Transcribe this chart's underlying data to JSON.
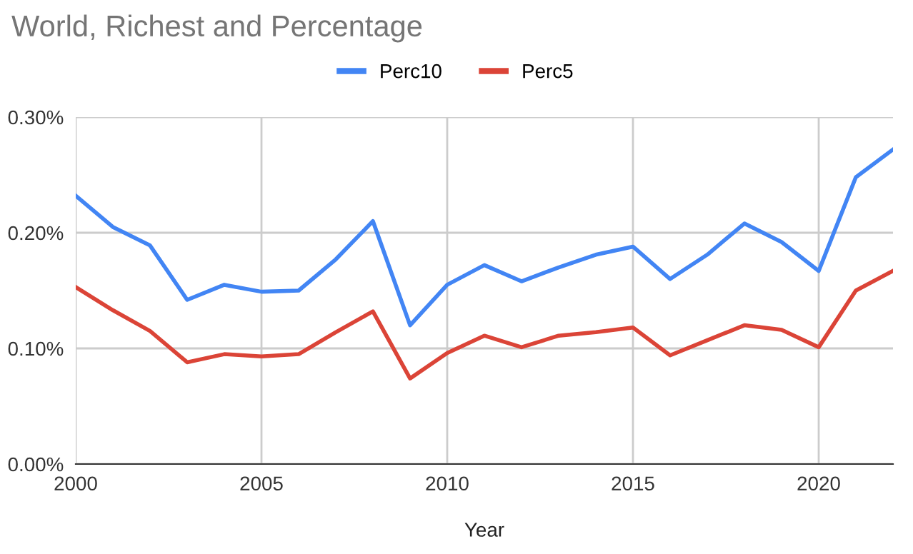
{
  "chart_data": {
    "type": "line",
    "title": "World, Richest and Percentage",
    "xlabel": "Year",
    "x": [
      2000,
      2001,
      2002,
      2003,
      2004,
      2005,
      2006,
      2007,
      2008,
      2009,
      2010,
      2011,
      2012,
      2013,
      2014,
      2015,
      2016,
      2017,
      2018,
      2019,
      2020,
      2021,
      2022
    ],
    "series": [
      {
        "name": "Perc10",
        "color": "#4285f4",
        "values": [
          0.232,
          0.205,
          0.189,
          0.142,
          0.155,
          0.149,
          0.15,
          0.177,
          0.21,
          0.12,
          0.155,
          0.172,
          0.158,
          0.17,
          0.181,
          0.188,
          0.16,
          0.181,
          0.208,
          0.192,
          0.167,
          0.248,
          0.272
        ]
      },
      {
        "name": "Perc5",
        "color": "#db4437",
        "values": [
          0.153,
          0.133,
          0.115,
          0.088,
          0.095,
          0.093,
          0.095,
          0.114,
          0.132,
          0.074,
          0.096,
          0.111,
          0.101,
          0.111,
          0.114,
          0.118,
          0.094,
          0.107,
          0.12,
          0.116,
          0.101,
          0.15,
          0.167
        ]
      }
    ],
    "xlim": [
      2000,
      2022
    ],
    "xticks": [
      2000,
      2005,
      2010,
      2015,
      2020
    ],
    "ylim": [
      0,
      0.3
    ],
    "yticks": [
      {
        "value": 0,
        "label": "0.00%"
      },
      {
        "value": 0.1,
        "label": "0.10%"
      },
      {
        "value": 0.2,
        "label": "0.20%"
      },
      {
        "value": 0.3,
        "label": "0.30%"
      }
    ],
    "grid": true,
    "legend": "top"
  }
}
